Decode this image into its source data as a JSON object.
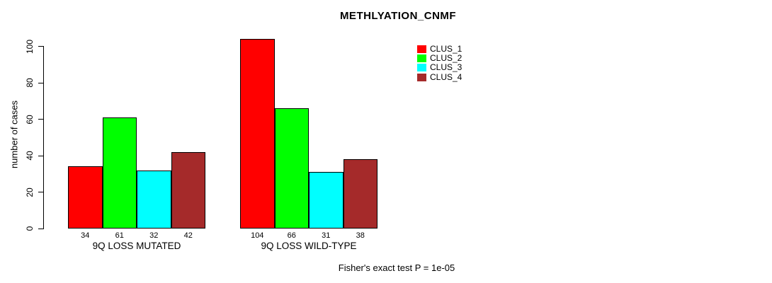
{
  "chart_data": {
    "type": "bar",
    "title": "METHLYATION_CNMF",
    "xlabel": "",
    "ylabel": "number of cases",
    "ylim": [
      0,
      100
    ],
    "yticks": [
      0,
      20,
      40,
      60,
      80,
      100
    ],
    "grid": false,
    "legend_position": "top-right",
    "categories": [
      "9Q LOSS MUTATED",
      "9Q LOSS WILD-TYPE"
    ],
    "series": [
      {
        "name": "CLUS_1",
        "color": "#ff0000",
        "values": [
          34,
          104
        ]
      },
      {
        "name": "CLUS_2",
        "color": "#00ff00",
        "values": [
          61,
          66
        ]
      },
      {
        "name": "CLUS_3",
        "color": "#00ffff",
        "values": [
          32,
          31
        ]
      },
      {
        "name": "CLUS_4",
        "color": "#a52a2a",
        "values": [
          42,
          38
        ]
      }
    ],
    "bar_labels": [
      [
        34,
        61,
        32,
        42
      ],
      [
        104,
        66,
        31,
        38
      ]
    ],
    "annotation": "Fisher's exact test P = 1e-05"
  }
}
